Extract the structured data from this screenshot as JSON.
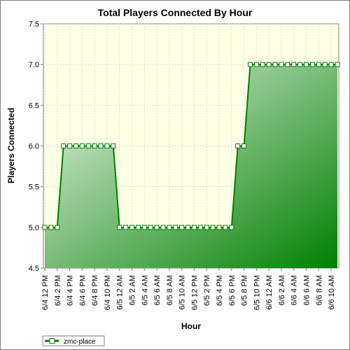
{
  "chart_data": {
    "type": "area",
    "title": "Total Players Connected By Hour",
    "xlabel": "Hour",
    "ylabel": "Players Connected",
    "ylim": [
      4.5,
      7.5
    ],
    "yticks": [
      "4.5",
      "5.0",
      "5.5",
      "6.0",
      "6.5",
      "7.0",
      "7.5"
    ],
    "grid": true,
    "legend_position": "bottom-left",
    "x": [
      "6/4 12 PM",
      "",
      "6/4 2 PM",
      "",
      "6/4 4 PM",
      "",
      "6/4 6 PM",
      "",
      "6/4 8 PM",
      "",
      "6/4 10 PM",
      "",
      "6/5 12 AM",
      "",
      "6/5 2 AM",
      "",
      "6/5 4 AM",
      "",
      "6/5 6 AM",
      "",
      "6/5 8 AM",
      "",
      "6/5 10 AM",
      "",
      "6/5 12 PM",
      "",
      "6/5 2 PM",
      "",
      "6/5 4 PM",
      "",
      "6/5 6 PM",
      "",
      "6/5 8 PM",
      "",
      "6/5 10 PM",
      "",
      "6/6 12 AM",
      "",
      "6/6 2 AM",
      "",
      "6/6 4 AM",
      "",
      "6/6 6 AM",
      "",
      "6/6 8 AM",
      "",
      "6/6 10 AM",
      ""
    ],
    "series": [
      {
        "name": "zmc-place",
        "color": "#008000",
        "values": [
          5,
          5,
          5,
          6,
          6,
          6,
          6,
          6,
          6,
          6,
          6,
          6,
          5,
          5,
          5,
          5,
          5,
          5,
          5,
          5,
          5,
          5,
          5,
          5,
          5,
          5,
          5,
          5,
          5,
          5,
          5,
          6,
          6,
          7,
          7,
          7,
          7,
          7,
          7,
          7,
          7,
          7,
          7,
          7,
          7,
          7,
          7,
          7
        ]
      }
    ],
    "colors": {
      "plot_background": "#ffffe6",
      "gradient_light": "#e8f4e8",
      "gradient_dark": "#008000",
      "marker_fill": "#ffffff",
      "grid": "#c8c8c8"
    }
  }
}
